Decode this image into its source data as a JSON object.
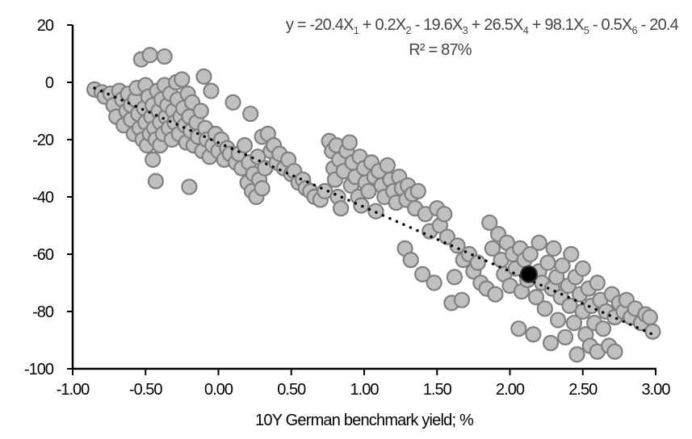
{
  "chart_data": {
    "type": "scatter",
    "title": "",
    "xlabel": "10Y German benchmark yield; %",
    "ylabel": "",
    "xlim": [
      -1.0,
      3.0
    ],
    "ylim": [
      -100,
      20
    ],
    "xticks": [
      "-1.00",
      "-0.50",
      "0.00",
      "0.50",
      "1.00",
      "1.50",
      "2.00",
      "2.50",
      "3.00"
    ],
    "yticks": [
      "20",
      "0",
      "-20",
      "-40",
      "-60",
      "-80",
      "-100"
    ],
    "grid": false,
    "legend": "none",
    "annotation": {
      "equation_parts": [
        {
          "t": "y = -20.4X"
        },
        {
          "s": "1"
        },
        {
          "t": " + 0.2X"
        },
        {
          "s": "2"
        },
        {
          "t": " - 19.6X"
        },
        {
          "s": "3"
        },
        {
          "t": " + 26.5X"
        },
        {
          "s": "4"
        },
        {
          "t": " + 98.1X"
        },
        {
          "s": "5"
        },
        {
          "t": " - 0.5X"
        },
        {
          "s": "6"
        },
        {
          "t": " - 20.4"
        }
      ],
      "r_squared": "R² = 87%"
    },
    "colors": {
      "marker_fill": "#c0c0c0",
      "marker_stroke": "#808080",
      "highlight": "#000000",
      "trendline": "#000000"
    },
    "trendline": {
      "style": "dotted",
      "x": [
        -0.85,
        2.98
      ],
      "y": [
        -2,
        -88
      ]
    },
    "highlight_point": [
      2.13,
      -67
    ],
    "points": [
      [
        -0.85,
        -2.5
      ],
      [
        -0.8,
        -3.5
      ],
      [
        -0.78,
        -5
      ],
      [
        -0.74,
        -4
      ],
      [
        -0.72,
        -8
      ],
      [
        -0.7,
        -12
      ],
      [
        -0.68,
        -3
      ],
      [
        -0.66,
        -6
      ],
      [
        -0.65,
        -15
      ],
      [
        -0.63,
        -10
      ],
      [
        -0.62,
        -4
      ],
      [
        -0.6,
        -8
      ],
      [
        -0.6,
        -13
      ],
      [
        -0.58,
        -18
      ],
      [
        -0.57,
        -6
      ],
      [
        -0.56,
        -2
      ],
      [
        -0.55,
        -11
      ],
      [
        -0.54,
        -16
      ],
      [
        -0.53,
        8
      ],
      [
        -0.52,
        -20
      ],
      [
        -0.51,
        -9
      ],
      [
        -0.5,
        -14
      ],
      [
        -0.5,
        -1
      ],
      [
        -0.49,
        -22
      ],
      [
        -0.48,
        -5
      ],
      [
        -0.47,
        9.5
      ],
      [
        -0.47,
        -18
      ],
      [
        -0.46,
        -12
      ],
      [
        -0.45,
        -27
      ],
      [
        -0.45,
        -8
      ],
      [
        -0.44,
        -16
      ],
      [
        -0.43,
        -34.5
      ],
      [
        -0.43,
        -20
      ],
      [
        -0.42,
        -3
      ],
      [
        -0.41,
        -10
      ],
      [
        -0.4,
        -14
      ],
      [
        -0.4,
        -22
      ],
      [
        -0.39,
        -6
      ],
      [
        -0.38,
        -18
      ],
      [
        -0.37,
        9
      ],
      [
        -0.37,
        -1
      ],
      [
        -0.36,
        -12
      ],
      [
        -0.35,
        -8
      ],
      [
        -0.34,
        -16
      ],
      [
        -0.33,
        -4
      ],
      [
        -0.32,
        -20
      ],
      [
        -0.31,
        -10
      ],
      [
        -0.3,
        -14
      ],
      [
        -0.29,
        0
      ],
      [
        -0.28,
        -6
      ],
      [
        -0.27,
        -18
      ],
      [
        -0.26,
        -12
      ],
      [
        -0.25,
        1
      ],
      [
        -0.24,
        -9
      ],
      [
        -0.23,
        -15
      ],
      [
        -0.22,
        -21
      ],
      [
        -0.21,
        -4
      ],
      [
        -0.2,
        -36.5
      ],
      [
        -0.2,
        -12
      ],
      [
        -0.19,
        -17
      ],
      [
        -0.18,
        -7
      ],
      [
        -0.17,
        -22
      ],
      [
        -0.15,
        -14
      ],
      [
        -0.14,
        -19
      ],
      [
        -0.12,
        -10
      ],
      [
        -0.11,
        -24
      ],
      [
        -0.1,
        2
      ],
      [
        -0.09,
        -16
      ],
      [
        -0.08,
        -20
      ],
      [
        -0.06,
        -26
      ],
      [
        -0.05,
        -3
      ],
      [
        -0.04,
        -22
      ],
      [
        -0.02,
        -18
      ],
      [
        0.0,
        -24
      ],
      [
        0.02,
        -20
      ],
      [
        0.04,
        -27
      ],
      [
        0.06,
        -23
      ],
      [
        0.08,
        -25
      ],
      [
        0.1,
        -7
      ],
      [
        0.12,
        -28
      ],
      [
        0.14,
        -25
      ],
      [
        0.16,
        -30
      ],
      [
        0.18,
        -22
      ],
      [
        0.2,
        -35
      ],
      [
        0.21,
        -28
      ],
      [
        0.22,
        -11
      ],
      [
        0.23,
        -38
      ],
      [
        0.24,
        -32
      ],
      [
        0.26,
        -40
      ],
      [
        0.27,
        -26
      ],
      [
        0.28,
        -34
      ],
      [
        0.3,
        -37
      ],
      [
        0.3,
        -19
      ],
      [
        0.32,
        -30
      ],
      [
        0.34,
        -18
      ],
      [
        0.36,
        -24
      ],
      [
        0.38,
        -22
      ],
      [
        0.4,
        -28
      ],
      [
        0.42,
        -25
      ],
      [
        0.45,
        -30
      ],
      [
        0.48,
        -27
      ],
      [
        0.5,
        -32
      ],
      [
        0.52,
        -31
      ],
      [
        0.55,
        -35
      ],
      [
        0.58,
        -34
      ],
      [
        0.6,
        -37
      ],
      [
        0.63,
        -38
      ],
      [
        0.66,
        -40
      ],
      [
        0.7,
        -41
      ],
      [
        0.73,
        -38
      ],
      [
        0.76,
        -20.5
      ],
      [
        0.78,
        -24
      ],
      [
        0.79,
        -30
      ],
      [
        0.8,
        -34
      ],
      [
        0.81,
        -22
      ],
      [
        0.82,
        -40
      ],
      [
        0.83,
        -27
      ],
      [
        0.84,
        -44
      ],
      [
        0.86,
        -31
      ],
      [
        0.88,
        -24
      ],
      [
        0.9,
        -21
      ],
      [
        0.91,
        -36
      ],
      [
        0.92,
        -28
      ],
      [
        0.94,
        -33
      ],
      [
        0.96,
        -40
      ],
      [
        0.97,
        -26
      ],
      [
        0.98,
        -43
      ],
      [
        1.0,
        -30
      ],
      [
        1.01,
        -35
      ],
      [
        1.03,
        -38
      ],
      [
        1.05,
        -28
      ],
      [
        1.07,
        -33
      ],
      [
        1.08,
        -45
      ],
      [
        1.1,
        -31
      ],
      [
        1.12,
        -36
      ],
      [
        1.14,
        -40
      ],
      [
        1.16,
        -29
      ],
      [
        1.18,
        -34
      ],
      [
        1.2,
        -38
      ],
      [
        1.22,
        -42
      ],
      [
        1.24,
        -33
      ],
      [
        1.26,
        -37
      ],
      [
        1.28,
        -58
      ],
      [
        1.29,
        -41
      ],
      [
        1.3,
        -36
      ],
      [
        1.32,
        -62
      ],
      [
        1.33,
        -39
      ],
      [
        1.35,
        -44
      ],
      [
        1.37,
        -38
      ],
      [
        1.4,
        -67
      ],
      [
        1.42,
        -46
      ],
      [
        1.45,
        -52
      ],
      [
        1.48,
        -70
      ],
      [
        1.5,
        -44
      ],
      [
        1.52,
        -50
      ],
      [
        1.55,
        -46
      ],
      [
        1.57,
        -54
      ],
      [
        1.6,
        -77
      ],
      [
        1.62,
        -68
      ],
      [
        1.64,
        -57
      ],
      [
        1.67,
        -76
      ],
      [
        1.68,
        -62
      ],
      [
        1.72,
        -60
      ],
      [
        1.75,
        -66
      ],
      [
        1.78,
        -63
      ],
      [
        1.8,
        -70
      ],
      [
        1.84,
        -72
      ],
      [
        1.86,
        -49
      ],
      [
        1.88,
        -58
      ],
      [
        1.9,
        -74
      ],
      [
        1.92,
        -53
      ],
      [
        1.94,
        -62
      ],
      [
        1.96,
        -67
      ],
      [
        1.98,
        -56
      ],
      [
        2.0,
        -71
      ],
      [
        2.02,
        -60
      ],
      [
        2.04,
        -65
      ],
      [
        2.06,
        -86
      ],
      [
        2.07,
        -58
      ],
      [
        2.08,
        -73
      ],
      [
        2.1,
        -62
      ],
      [
        2.12,
        -69
      ],
      [
        2.14,
        -60
      ],
      [
        2.16,
        -88
      ],
      [
        2.18,
        -75
      ],
      [
        2.2,
        -66
      ],
      [
        2.2,
        -56
      ],
      [
        2.22,
        -70
      ],
      [
        2.24,
        -79
      ],
      [
        2.26,
        -63
      ],
      [
        2.28,
        -91
      ],
      [
        2.29,
        -72
      ],
      [
        2.3,
        -58
      ],
      [
        2.32,
        -68
      ],
      [
        2.33,
        -83
      ],
      [
        2.35,
        -75
      ],
      [
        2.36,
        -64
      ],
      [
        2.38,
        -89
      ],
      [
        2.4,
        -71
      ],
      [
        2.41,
        -78
      ],
      [
        2.42,
        -60
      ],
      [
        2.44,
        -84
      ],
      [
        2.45,
        -68
      ],
      [
        2.46,
        -95
      ],
      [
        2.48,
        -74
      ],
      [
        2.5,
        -80
      ],
      [
        2.5,
        -65
      ],
      [
        2.52,
        -88
      ],
      [
        2.54,
        -72
      ],
      [
        2.55,
        -92
      ],
      [
        2.56,
        -78
      ],
      [
        2.58,
        -84
      ],
      [
        2.6,
        -70
      ],
      [
        2.6,
        -94
      ],
      [
        2.62,
        -76
      ],
      [
        2.64,
        -86
      ],
      [
        2.66,
        -80
      ],
      [
        2.68,
        -92
      ],
      [
        2.7,
        -74
      ],
      [
        2.72,
        -94
      ],
      [
        2.72,
        -82
      ],
      [
        2.75,
        -77
      ],
      [
        2.78,
        -80
      ],
      [
        2.8,
        -76
      ],
      [
        2.83,
        -82
      ],
      [
        2.86,
        -79
      ],
      [
        2.9,
        -84
      ],
      [
        2.93,
        -81
      ],
      [
        2.96,
        -82
      ],
      [
        2.98,
        -87
      ]
    ]
  }
}
